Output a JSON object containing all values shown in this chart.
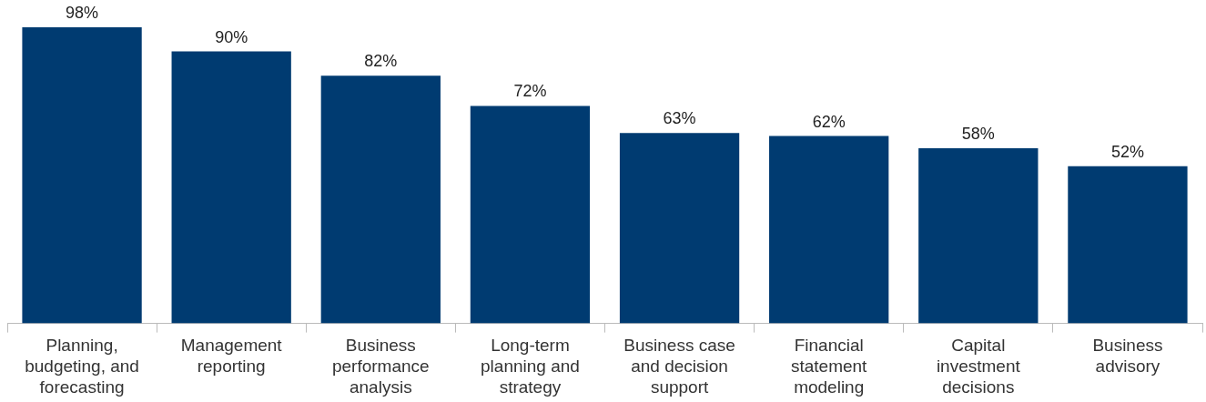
{
  "chart_data": {
    "type": "bar",
    "categories": [
      "Planning, budgeting, and forecasting",
      "Management reporting",
      "Business performance analysis",
      "Long-term planning and strategy",
      "Business case and decision support",
      "Financial statement modeling",
      "Capital investment decisions",
      "Business advisory"
    ],
    "values": [
      98,
      90,
      82,
      72,
      63,
      62,
      58,
      52
    ],
    "value_labels": [
      "98%",
      "90%",
      "82%",
      "72%",
      "63%",
      "62%",
      "58%",
      "52%"
    ],
    "color": "#003b71",
    "tick_labels": "x",
    "grid": false,
    "legend": false
  }
}
